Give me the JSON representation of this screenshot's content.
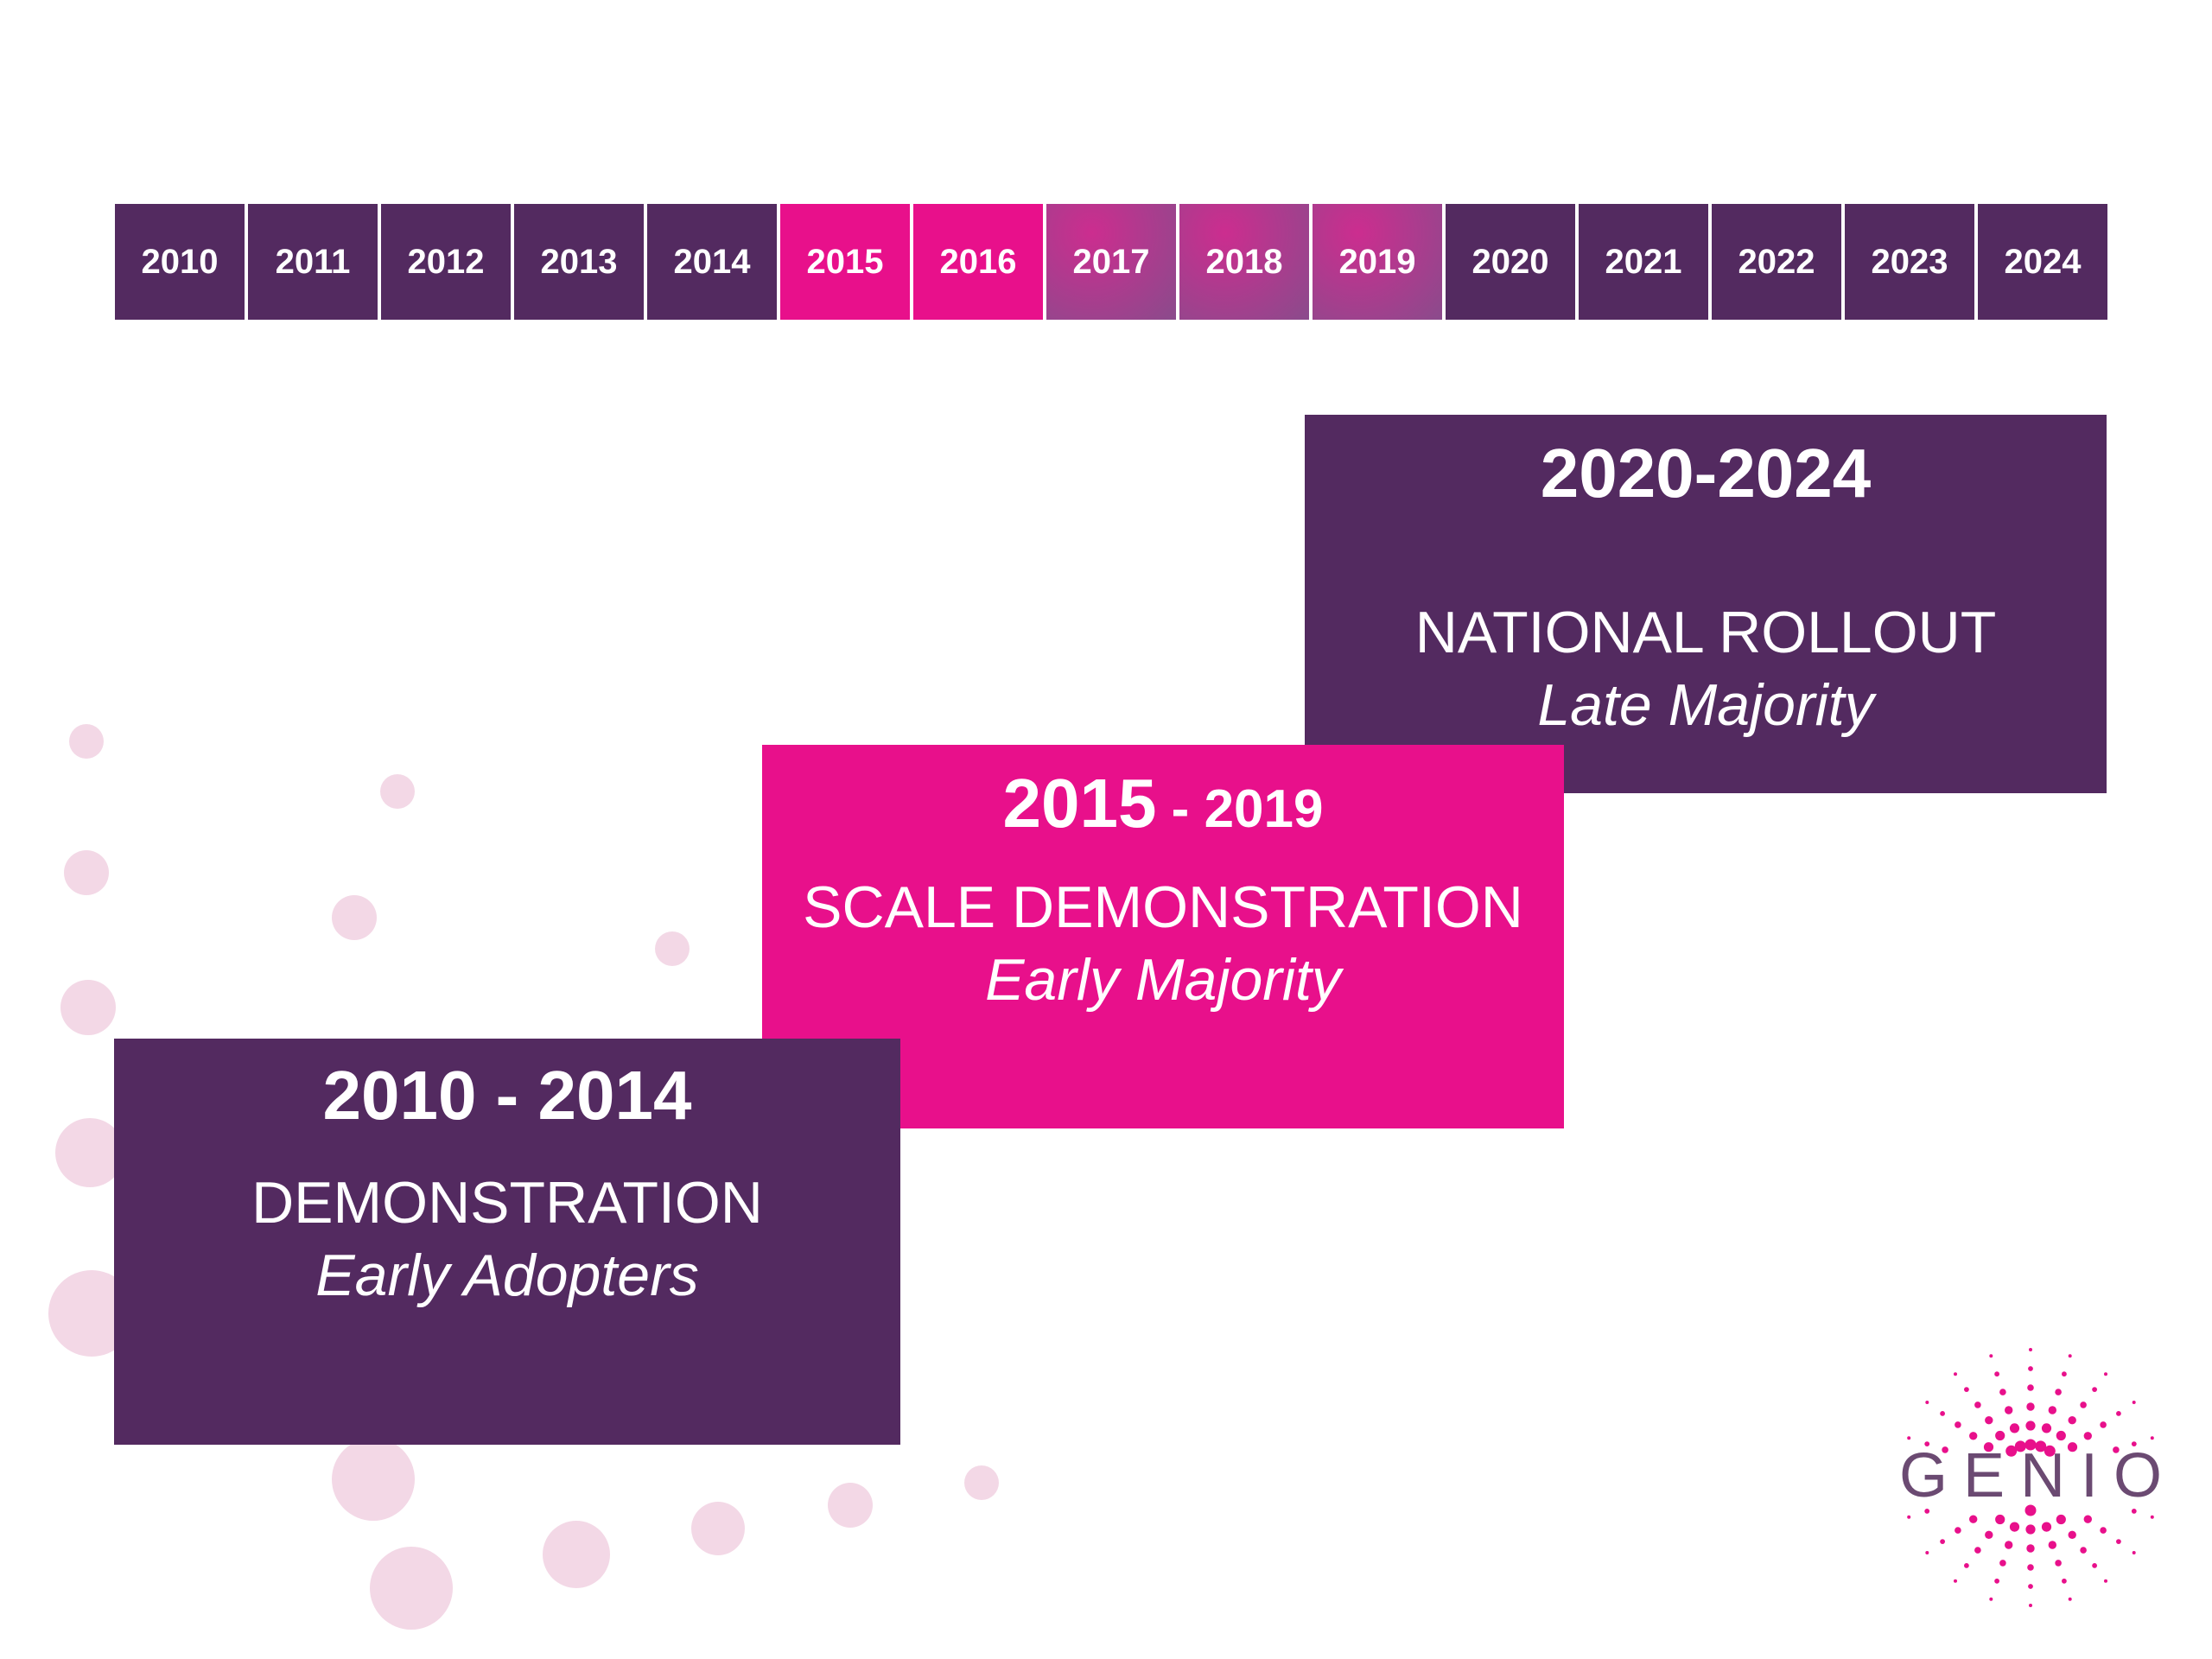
{
  "colors": {
    "purple": "#532a60",
    "magenta": "#e8108b",
    "gradient_from": "#cc2d8f",
    "gradient_to": "#8a4b8c",
    "bubble": "#f3d8e6",
    "logo_dot": "#e8108b",
    "logo_text": "#6b4a72"
  },
  "years": [
    {
      "label": "2010",
      "style": "purple"
    },
    {
      "label": "2011",
      "style": "purple"
    },
    {
      "label": "2012",
      "style": "purple"
    },
    {
      "label": "2013",
      "style": "purple"
    },
    {
      "label": "2014",
      "style": "purple"
    },
    {
      "label": "2015",
      "style": "magenta"
    },
    {
      "label": "2016",
      "style": "magenta"
    },
    {
      "label": "2017",
      "style": "gradient"
    },
    {
      "label": "2018",
      "style": "gradient"
    },
    {
      "label": "2019",
      "style": "gradient"
    },
    {
      "label": "2020",
      "style": "purple"
    },
    {
      "label": "2021",
      "style": "purple"
    },
    {
      "label": "2022",
      "style": "purple"
    },
    {
      "label": "2023",
      "style": "purple"
    },
    {
      "label": "2024",
      "style": "purple"
    }
  ],
  "phases": {
    "rollout": {
      "range": "2020-2024",
      "title": "NATIONAL ROLLOUT",
      "subtitle": "Late Majority",
      "color": "#532a60"
    },
    "scale": {
      "range_start": "2015",
      "range_sep": " - ",
      "range_end": "2019",
      "title": "SCALE DEMONSTRATION",
      "subtitle": "Early Majority",
      "color": "#e8108b"
    },
    "demo": {
      "range": "2010 - 2014",
      "title": "DEMONSTRATION",
      "subtitle": "Early Adopters",
      "color": "#532a60"
    }
  },
  "logo": {
    "text": "GENIO",
    "icon": "sunburst-dots-icon"
  }
}
